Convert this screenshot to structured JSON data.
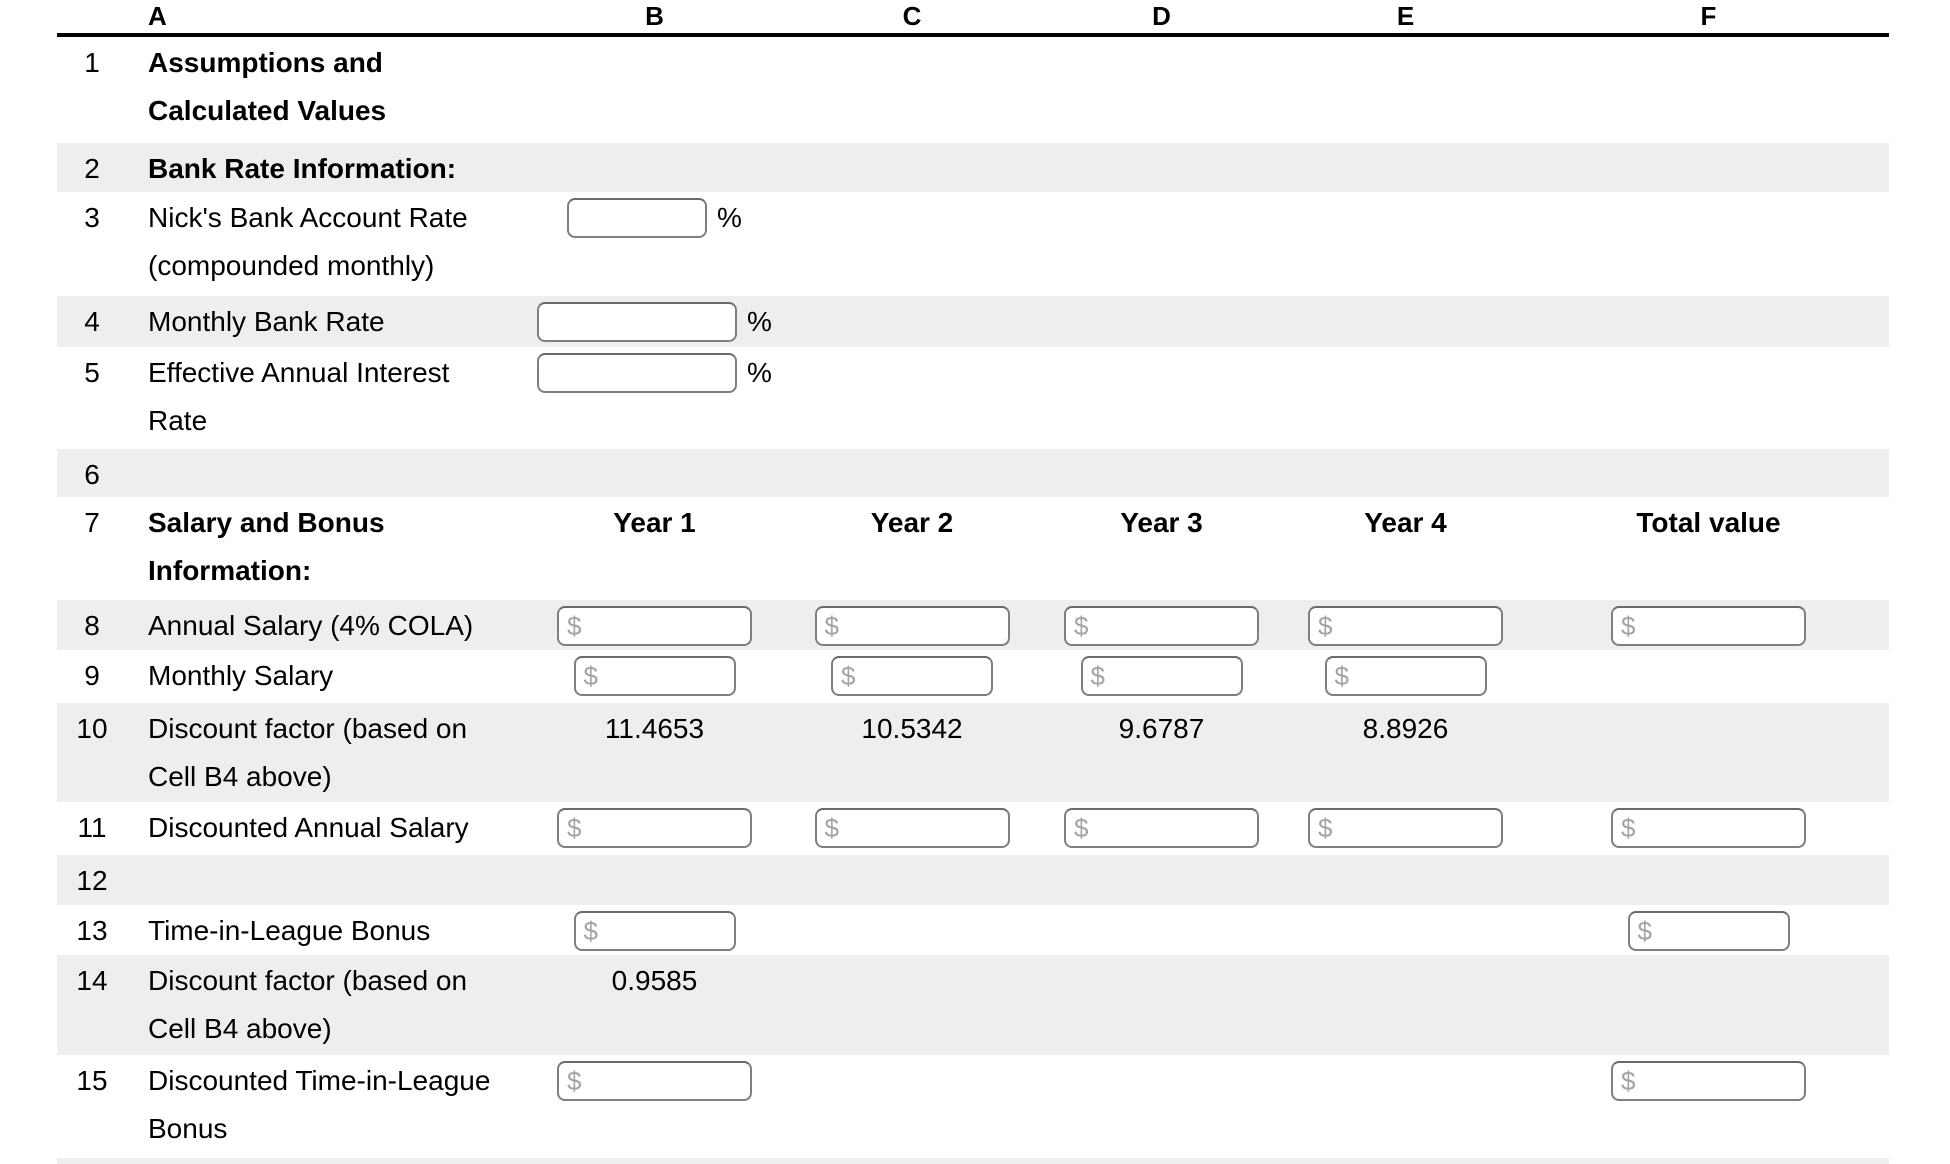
{
  "table": {
    "columns": [
      "A",
      "B",
      "C",
      "D",
      "E",
      "F"
    ],
    "symbols": {
      "dollar": "$",
      "percent": "%"
    },
    "rows": [
      {
        "num": "1",
        "bold": true,
        "label": [
          "Assumptions and",
          "Calculated Values"
        ],
        "cells": []
      },
      {
        "num": "2",
        "bold": true,
        "label": [
          "Bank Rate Information:"
        ],
        "cells": []
      },
      {
        "num": "3",
        "bold": false,
        "label": [
          "Nick's Bank Account Rate",
          "(compounded monthly)"
        ],
        "cells": [
          {
            "col": "B",
            "kind": "percent",
            "size": "sm",
            "value": ""
          }
        ]
      },
      {
        "num": "4",
        "bold": false,
        "label": [
          "Monthly Bank Rate"
        ],
        "cells": [
          {
            "col": "B",
            "kind": "percent",
            "size": "xl",
            "value": ""
          }
        ]
      },
      {
        "num": "5",
        "bold": false,
        "label": [
          "Effective Annual Interest",
          "Rate"
        ],
        "cells": [
          {
            "col": "B",
            "kind": "percent",
            "size": "xl",
            "value": ""
          }
        ]
      },
      {
        "num": "6",
        "bold": false,
        "label": [],
        "cells": []
      },
      {
        "num": "7",
        "bold": true,
        "label": [
          "Salary and Bonus",
          "Information:"
        ],
        "cells": [
          {
            "col": "B",
            "kind": "header",
            "value": "Year 1"
          },
          {
            "col": "C",
            "kind": "header",
            "value": "Year 2"
          },
          {
            "col": "D",
            "kind": "header",
            "value": "Year 3"
          },
          {
            "col": "E",
            "kind": "header",
            "value": "Year 4"
          },
          {
            "col": "F",
            "kind": "header",
            "value": "Total value"
          }
        ]
      },
      {
        "num": "8",
        "bold": false,
        "label": [
          "Annual Salary (4% COLA)"
        ],
        "cells": [
          {
            "col": "B",
            "kind": "money",
            "size": "lg",
            "value": ""
          },
          {
            "col": "C",
            "kind": "money",
            "size": "lg",
            "value": ""
          },
          {
            "col": "D",
            "kind": "money",
            "size": "lg",
            "value": ""
          },
          {
            "col": "E",
            "kind": "money",
            "size": "lg",
            "value": ""
          },
          {
            "col": "F",
            "kind": "money",
            "size": "lg",
            "value": ""
          }
        ]
      },
      {
        "num": "9",
        "bold": false,
        "label": [
          "Monthly Salary"
        ],
        "cells": [
          {
            "col": "B",
            "kind": "money",
            "size": "md",
            "value": ""
          },
          {
            "col": "C",
            "kind": "money",
            "size": "md",
            "value": ""
          },
          {
            "col": "D",
            "kind": "money",
            "size": "md",
            "value": ""
          },
          {
            "col": "E",
            "kind": "money",
            "size": "md",
            "value": ""
          }
        ]
      },
      {
        "num": "10",
        "bold": false,
        "label": [
          "Discount factor (based on",
          "Cell B4 above)"
        ],
        "cells": [
          {
            "col": "B",
            "kind": "value",
            "value": "11.4653"
          },
          {
            "col": "C",
            "kind": "value",
            "value": "10.5342"
          },
          {
            "col": "D",
            "kind": "value",
            "value": "9.6787"
          },
          {
            "col": "E",
            "kind": "value",
            "value": "8.8926"
          }
        ]
      },
      {
        "num": "11",
        "bold": false,
        "label": [
          "Discounted Annual Salary"
        ],
        "cells": [
          {
            "col": "B",
            "kind": "money",
            "size": "lg",
            "value": ""
          },
          {
            "col": "C",
            "kind": "money",
            "size": "lg",
            "value": ""
          },
          {
            "col": "D",
            "kind": "money",
            "size": "lg",
            "value": ""
          },
          {
            "col": "E",
            "kind": "money",
            "size": "lg",
            "value": ""
          },
          {
            "col": "F",
            "kind": "money",
            "size": "lg",
            "value": ""
          }
        ]
      },
      {
        "num": "12",
        "bold": false,
        "label": [],
        "cells": []
      },
      {
        "num": "13",
        "bold": false,
        "label": [
          "Time-in-League Bonus"
        ],
        "cells": [
          {
            "col": "B",
            "kind": "money",
            "size": "md",
            "value": ""
          },
          {
            "col": "F",
            "kind": "money",
            "size": "md",
            "value": ""
          }
        ]
      },
      {
        "num": "14",
        "bold": false,
        "label": [
          "Discount factor (based on",
          "Cell B4 above)"
        ],
        "cells": [
          {
            "col": "B",
            "kind": "value",
            "value": "0.9585"
          }
        ]
      },
      {
        "num": "15",
        "bold": false,
        "label": [
          "Discounted Time-in-League",
          "Bonus"
        ],
        "cells": [
          {
            "col": "B",
            "kind": "money",
            "size": "lg",
            "value": ""
          },
          {
            "col": "F",
            "kind": "money",
            "size": "lg",
            "value": ""
          }
        ]
      },
      {
        "num": "",
        "bold": false,
        "label": [],
        "cells": []
      }
    ]
  },
  "colors": {
    "row_shade": "#eeeeee",
    "input_border": "#7f7f7f",
    "dollar_gray": "#a3a3a3",
    "header_rule": "#000000"
  }
}
